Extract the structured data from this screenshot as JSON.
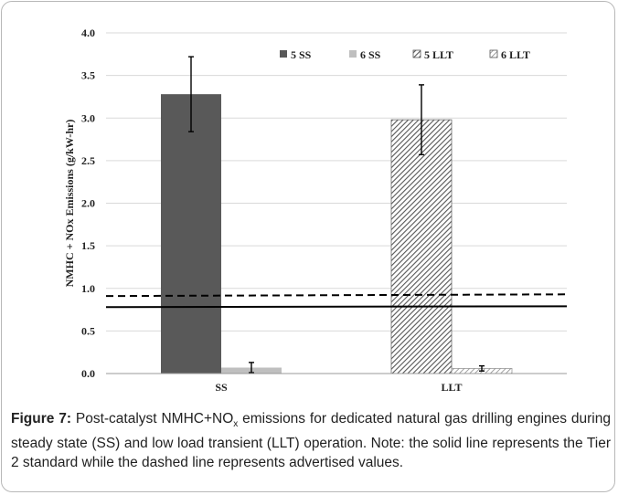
{
  "chart_data": {
    "type": "bar",
    "title": "",
    "xlabel": "",
    "ylabel": "NMHC + NOx Emissions (g/kW-hr)",
    "categories": [
      "SS",
      "LLT"
    ],
    "ylim": [
      0.0,
      4.0
    ],
    "yticks": [
      "0.0",
      "0.5",
      "1.0",
      "1.5",
      "2.0",
      "2.5",
      "3.0",
      "3.5",
      "4.0"
    ],
    "grid": true,
    "legend_position": "top-right",
    "series": [
      {
        "name": "5 SS",
        "color": "#595959",
        "pattern": "solid",
        "values": [
          3.28,
          null
        ],
        "error": [
          [
            2.84,
            3.72
          ],
          null
        ]
      },
      {
        "name": "6 SS",
        "color": "#bfbfbf",
        "pattern": "solid",
        "values": [
          0.07,
          null
        ],
        "error": [
          [
            0.01,
            0.13
          ],
          null
        ]
      },
      {
        "name": "5 LLT",
        "color": "#6b6b6b",
        "pattern": "hatch",
        "values": [
          null,
          2.98
        ],
        "error": [
          null,
          [
            2.57,
            3.39
          ]
        ]
      },
      {
        "name": "6 LLT",
        "color": "#9a9a9a",
        "pattern": "hatch-light",
        "values": [
          null,
          0.06
        ],
        "error": [
          null,
          [
            0.03,
            0.09
          ]
        ]
      }
    ],
    "reference_lines": [
      {
        "style": "solid",
        "y_start": 0.78,
        "y_end": 0.79
      },
      {
        "style": "dashed",
        "y_start": 0.91,
        "y_end": 0.93
      }
    ]
  },
  "caption": {
    "label": "Figure 7:",
    "text_before_sub": " Post-catalyst NMHC+NO",
    "sub": "x",
    "text_after_sub": " emissions for dedicated natural gas drilling engines during steady state (SS) and low load transient (LLT) operation. Note: the solid line represents the Tier 2 standard while the dashed line represents advertised values."
  }
}
